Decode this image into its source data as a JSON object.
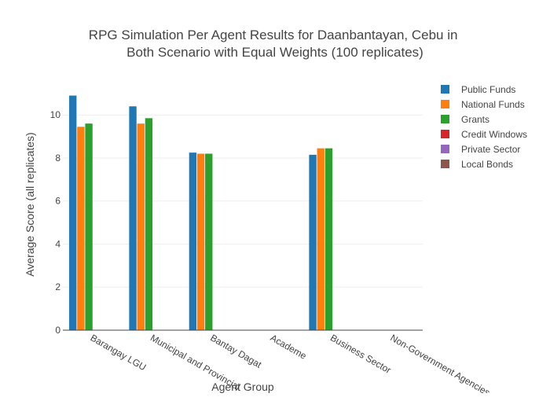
{
  "chart_data": {
    "type": "bar",
    "title": "RPG Simulation Per Agent Results for Daanbantayan, Cebu in Both Scenario with Equal Weights (100 replicates)",
    "title_lines": [
      "RPG Simulation Per Agent Results for Daanbantayan, Cebu in",
      "Both Scenario with Equal Weights (100 replicates)"
    ],
    "xlabel": "Agent Group",
    "ylabel": "Average Score (all replicates)",
    "categories": [
      "Barangay LGU",
      "Municipal and Provincial",
      "Bantay Dagat",
      "Academe",
      "Business Sector",
      "Non-Government Agencies"
    ],
    "ylim": [
      0,
      11.25
    ],
    "yticks": [
      0,
      2,
      4,
      6,
      8,
      10
    ],
    "ytick_labels": [
      "0",
      "2",
      "4",
      "6",
      "8",
      "10"
    ],
    "grid": true,
    "legend_position": "right",
    "series": [
      {
        "name": "Public Funds",
        "color": "#1f77b4",
        "values": [
          10.9,
          10.4,
          8.25,
          null,
          8.15,
          null
        ]
      },
      {
        "name": "National Funds",
        "color": "#ff7f0e",
        "values": [
          9.45,
          9.6,
          8.2,
          null,
          8.45,
          null
        ]
      },
      {
        "name": "Grants",
        "color": "#2ca02c",
        "values": [
          9.6,
          9.85,
          8.2,
          null,
          8.45,
          null
        ]
      },
      {
        "name": "Credit Windows",
        "color": "#d62728",
        "values": [
          null,
          null,
          null,
          null,
          null,
          null
        ]
      },
      {
        "name": "Private Sector",
        "color": "#9467bd",
        "values": [
          null,
          null,
          null,
          null,
          null,
          null
        ]
      },
      {
        "name": "Local Bonds",
        "color": "#8c564b",
        "values": [
          null,
          null,
          null,
          null,
          null,
          null
        ]
      }
    ]
  }
}
